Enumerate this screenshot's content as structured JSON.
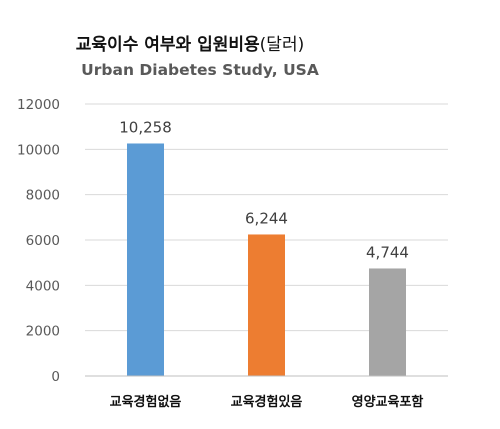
{
  "chart_data": {
    "type": "bar",
    "title_main": "교육이수 여부와 입원비용",
    "title_paren": "(달러)",
    "subtitle": "Urban Diabetes Study, USA",
    "xlabel": "",
    "ylabel": "",
    "ylim": [
      0,
      12000
    ],
    "yticks": [
      0,
      2000,
      4000,
      6000,
      8000,
      10000,
      12000
    ],
    "grid": true,
    "categories": [
      "교육경험없음",
      "교육경험있음",
      "영양교육포함"
    ],
    "values": [
      10258,
      6244,
      4744
    ],
    "data_labels": [
      "10,258",
      "6,244",
      "4,744"
    ],
    "colors": [
      "#5b9bd5",
      "#ed7d31",
      "#a5a5a5"
    ],
    "gridline_color": "#d9d9d9"
  }
}
